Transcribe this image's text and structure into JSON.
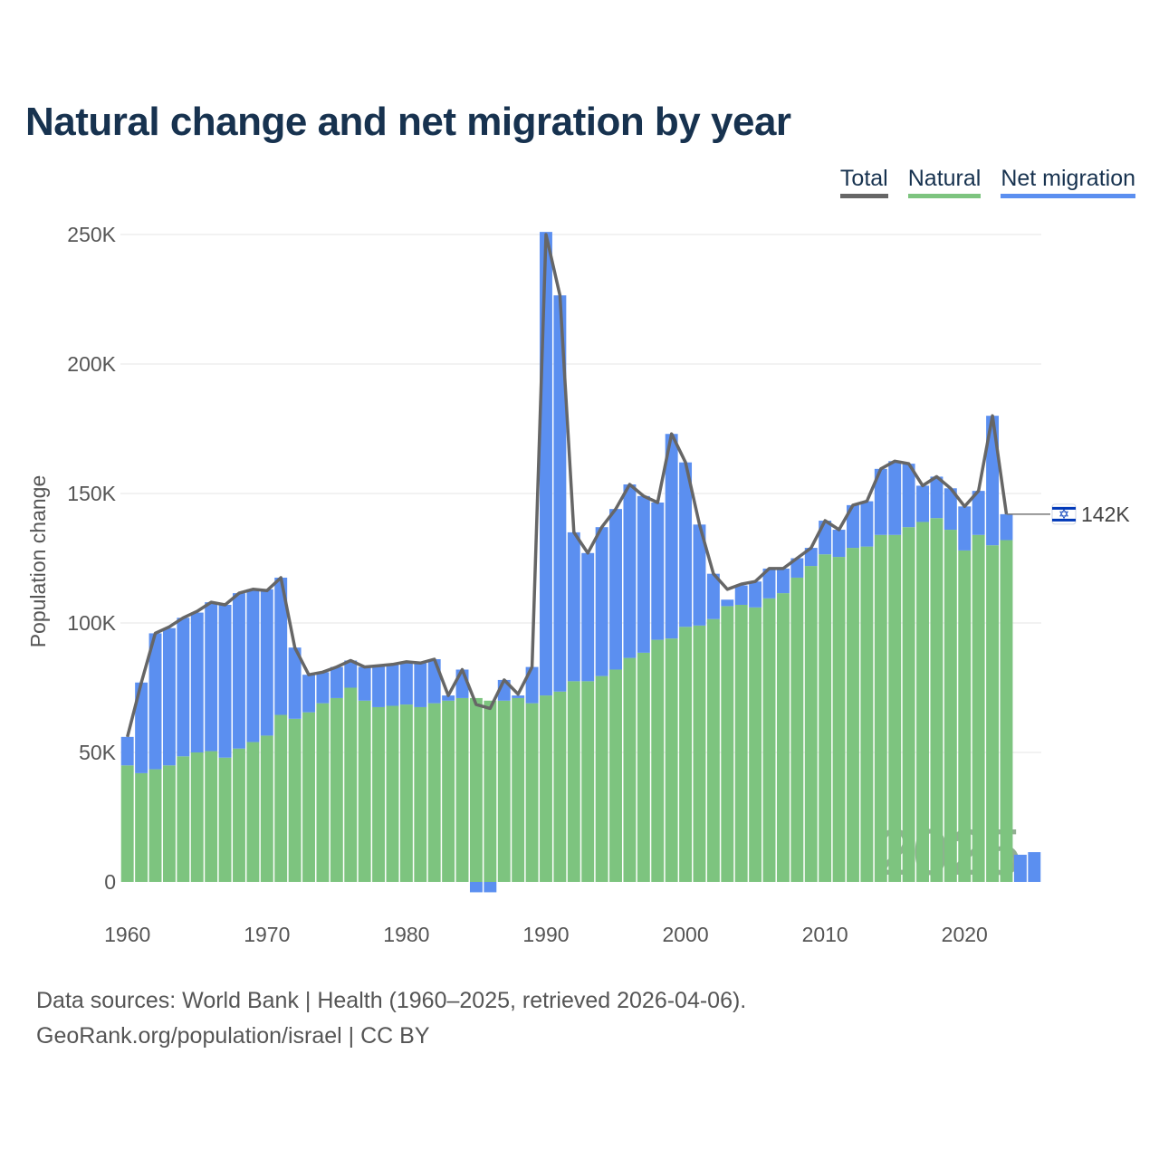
{
  "chart_data": {
    "type": "bar",
    "stacked": true,
    "title": "Natural change and net migration by year",
    "ylabel": "Population change",
    "xlabel": "",
    "xlim": [
      1960,
      2025
    ],
    "ylim": [
      -5000,
      250000
    ],
    "y_ticks": [
      0,
      50000,
      100000,
      150000,
      200000,
      250000
    ],
    "y_tick_labels": [
      "0",
      "50K",
      "100K",
      "150K",
      "200K",
      "250K"
    ],
    "x_ticks": [
      1960,
      1970,
      1980,
      1990,
      2000,
      2010,
      2020
    ],
    "x_tick_labels": [
      "1960",
      "1970",
      "1980",
      "1990",
      "2000",
      "2010",
      "2020"
    ],
    "legend": {
      "position": "top-right",
      "items": [
        {
          "label": "Total",
          "color": "#666666"
        },
        {
          "label": "Natural",
          "color": "#7dc47f"
        },
        {
          "label": "Net migration",
          "color": "#5b8ff0"
        }
      ]
    },
    "years": [
      1960,
      1961,
      1962,
      1963,
      1964,
      1965,
      1966,
      1967,
      1968,
      1969,
      1970,
      1971,
      1972,
      1973,
      1974,
      1975,
      1976,
      1977,
      1978,
      1979,
      1980,
      1981,
      1982,
      1983,
      1984,
      1985,
      1986,
      1987,
      1988,
      1989,
      1990,
      1991,
      1992,
      1993,
      1994,
      1995,
      1996,
      1997,
      1998,
      1999,
      2000,
      2001,
      2002,
      2003,
      2004,
      2005,
      2006,
      2007,
      2008,
      2009,
      2010,
      2011,
      2012,
      2013,
      2014,
      2015,
      2016,
      2017,
      2018,
      2019,
      2020,
      2021,
      2022,
      2023,
      2024,
      2025
    ],
    "series": [
      {
        "name": "Natural",
        "color": "#7dc47f",
        "values": [
          45000,
          42000,
          43500,
          45000,
          48500,
          50000,
          50500,
          48000,
          51500,
          54000,
          56500,
          64500,
          63000,
          65500,
          69000,
          71000,
          75000,
          70000,
          67500,
          68000,
          68500,
          67500,
          69000,
          70000,
          71000,
          71000,
          70000,
          70000,
          71000,
          69000,
          72000,
          73500,
          77500,
          77500,
          79500,
          82000,
          86500,
          88500,
          93500,
          94000,
          98500,
          99000,
          101500,
          106500,
          107000,
          106000,
          109500,
          111500,
          117500,
          122000,
          126500,
          125500,
          129000,
          129500,
          134000,
          134000,
          137000,
          139000,
          140500,
          136000,
          128000,
          134000,
          130000,
          132000,
          0,
          0
        ]
      },
      {
        "name": "Net migration",
        "color": "#5b8ff0",
        "values": [
          11000,
          35000,
          52500,
          53000,
          53500,
          54000,
          57500,
          59000,
          60000,
          59000,
          56500,
          53000,
          27500,
          14500,
          12000,
          12000,
          10500,
          13000,
          16000,
          16000,
          16500,
          17000,
          17000,
          2000,
          11000,
          -4000,
          -4000,
          8000,
          1000,
          14000,
          179000,
          153000,
          57500,
          49500,
          57500,
          62000,
          67000,
          60500,
          53000,
          79000,
          63500,
          39000,
          17500,
          2500,
          7500,
          10000,
          11500,
          9500,
          7500,
          7000,
          13000,
          10500,
          16500,
          17500,
          25500,
          28500,
          24500,
          14000,
          16000,
          16000,
          17000,
          17000,
          50000,
          10000,
          10500,
          11500
        ]
      },
      {
        "name": "Total",
        "color": "#666666",
        "values": [
          56000,
          77000,
          96000,
          98500,
          102000,
          104500,
          108000,
          107000,
          111500,
          113000,
          112500,
          117500,
          90500,
          80000,
          81000,
          83000,
          85500,
          83000,
          83500,
          84000,
          85000,
          84500,
          86000,
          72000,
          82000,
          68500,
          67000,
          78000,
          72500,
          83000,
          250000,
          226500,
          135000,
          127000,
          137000,
          144000,
          153500,
          149000,
          146500,
          173000,
          162000,
          138000,
          119000,
          113000,
          115000,
          116000,
          121000,
          121000,
          125000,
          129000,
          139500,
          136000,
          145500,
          147000,
          159500,
          162500,
          161500,
          153000,
          156500,
          152000,
          145000,
          151000,
          180000,
          142000
        ]
      }
    ],
    "end_label": "142K",
    "watermark_year": "2025"
  },
  "footer": {
    "line1": "Data sources: World Bank | Health (1960–2025, retrieved 2026-04-06).",
    "line2": "GeoRank.org/population/israel | CC BY"
  },
  "flag_icon": "israel-flag-icon"
}
